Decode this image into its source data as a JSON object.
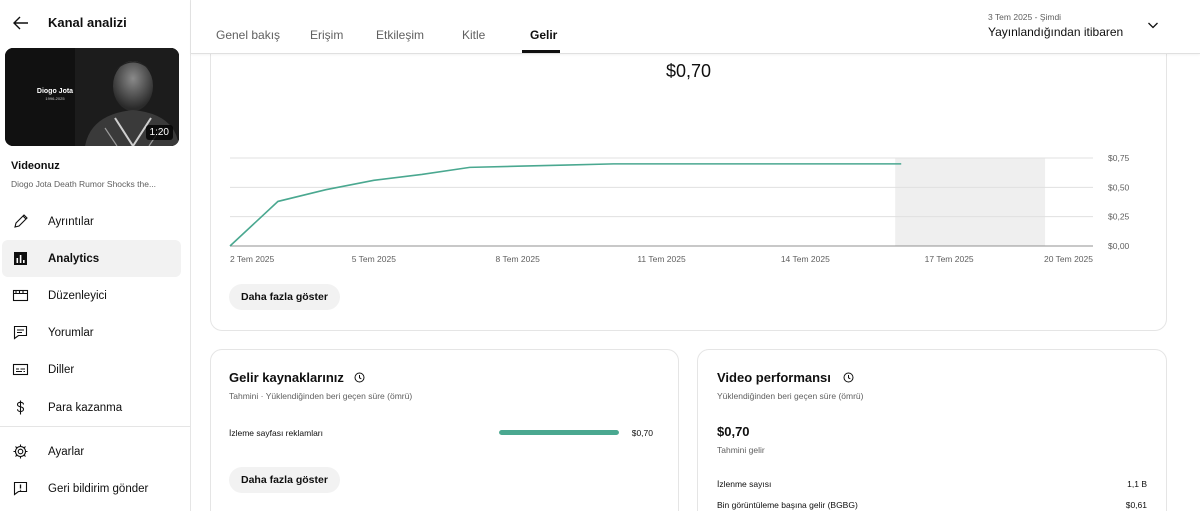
{
  "sidebar": {
    "title": "Kanal analizi",
    "thumbnail": {
      "name": "Diogo Jota",
      "years": "1996-2025",
      "duration": "1:20"
    },
    "your_video_label": "Videonuz",
    "video_title": "Diogo Jota Death Rumor Shocks the...",
    "items": [
      {
        "label": "Ayrıntılar",
        "icon": "pencil-icon"
      },
      {
        "label": "Analytics",
        "icon": "analytics-icon",
        "active": true
      },
      {
        "label": "Düzenleyici",
        "icon": "clapper-icon"
      },
      {
        "label": "Yorumlar",
        "icon": "comment-icon"
      },
      {
        "label": "Diller",
        "icon": "subtitles-icon"
      },
      {
        "label": "Para kazanma",
        "icon": "dollar-icon"
      }
    ],
    "bottom_items": [
      {
        "label": "Ayarlar",
        "icon": "gear-icon"
      },
      {
        "label": "Geri bildirim gönder",
        "icon": "feedback-icon"
      }
    ]
  },
  "tabs": [
    {
      "label": "Genel bakış"
    },
    {
      "label": "Erişim"
    },
    {
      "label": "Etkileşim"
    },
    {
      "label": "Kitle"
    },
    {
      "label": "Gelir",
      "active": true
    }
  ],
  "date_range": {
    "small": "3 Tem 2025 - Şimdi",
    "main": "Yayınlandığından itibaren"
  },
  "revenue_chart": {
    "total": "$0,70",
    "more_button": "Daha fazla göster"
  },
  "chart_data": {
    "type": "line",
    "x": [
      "2 Tem 2025",
      "3 Tem 2025",
      "4 Tem 2025",
      "5 Tem 2025",
      "6 Tem 2025",
      "7 Tem 2025",
      "8 Tem 2025",
      "9 Tem 2025",
      "10 Tem 2025",
      "11 Tem 2025",
      "12 Tem 2025",
      "13 Tem 2025",
      "14 Tem 2025",
      "15 Tem 2025",
      "16 Tem 2025"
    ],
    "values": [
      0.0,
      0.38,
      0.48,
      0.56,
      0.61,
      0.67,
      0.68,
      0.69,
      0.7,
      0.7,
      0.7,
      0.7,
      0.7,
      0.7,
      0.7
    ],
    "x_tick_labels": [
      "2 Tem 2025",
      "5 Tem 2025",
      "8 Tem 2025",
      "11 Tem 2025",
      "14 Tem 2025",
      "17 Tem 2025",
      "20 Tem 2025"
    ],
    "y_tick_labels": [
      "$0,75",
      "$0,50",
      "$0,25",
      "$0,00"
    ],
    "y_ticks": [
      0.75,
      0.5,
      0.25,
      0.0
    ],
    "ylim": [
      0,
      0.75
    ],
    "shaded_range": [
      "16 Tem 2025",
      "19 Tem 2025"
    ],
    "line_color": "#4aa890",
    "grid": true
  },
  "revenue_sources": {
    "title": "Gelir kaynaklarınız",
    "subtitle": "Tahmini · Yüklendiğinden beri geçen süre (ömrü)",
    "rows": [
      {
        "label": "İzleme sayfası reklamları",
        "value": "$0,70",
        "share": 1.0
      }
    ],
    "more_button": "Daha fazla göster"
  },
  "video_performance": {
    "title": "Video performansı",
    "subtitle": "Yüklendiğinden beri geçen süre (ömrü)",
    "revenue": "$0,70",
    "revenue_label": "Tahmini gelir",
    "rows": [
      {
        "label": "İzlenme sayısı",
        "value": "1,1 B"
      },
      {
        "label": "Bin görüntüleme başına gelir (BGBG)",
        "value": "$0,61"
      }
    ]
  }
}
